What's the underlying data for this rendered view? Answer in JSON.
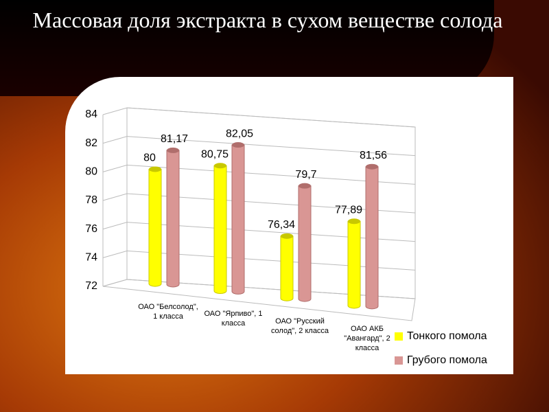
{
  "chart_data": {
    "type": "bar3d",
    "title": "Массовая доля экстракта в сухом веществе солода",
    "categories": [
      "ОАО \"Белсолод\", 1 класса",
      "ОАО \"Ярпиво\", 1 класса",
      "ОАО \"Русский солод\", 2 класса",
      "ОАО АКБ \"Авангард\", 2 класса"
    ],
    "series": [
      {
        "name": "Тонкого помола",
        "color": "#ffff00",
        "values": [
          80,
          80.75,
          76.34,
          77.89
        ],
        "value_labels": [
          "80",
          "80,75",
          "76,34",
          "77,89"
        ]
      },
      {
        "name": "Грубого помола",
        "color": "#d99694",
        "values": [
          81.17,
          82.05,
          79.7,
          81.56
        ],
        "value_labels": [
          "81,17",
          "82,05",
          "79,7",
          "81,56"
        ]
      }
    ],
    "ylim": [
      72,
      84
    ],
    "yticks": [
      72,
      74,
      76,
      78,
      80,
      82,
      84
    ],
    "grid": true,
    "legend": "right"
  }
}
